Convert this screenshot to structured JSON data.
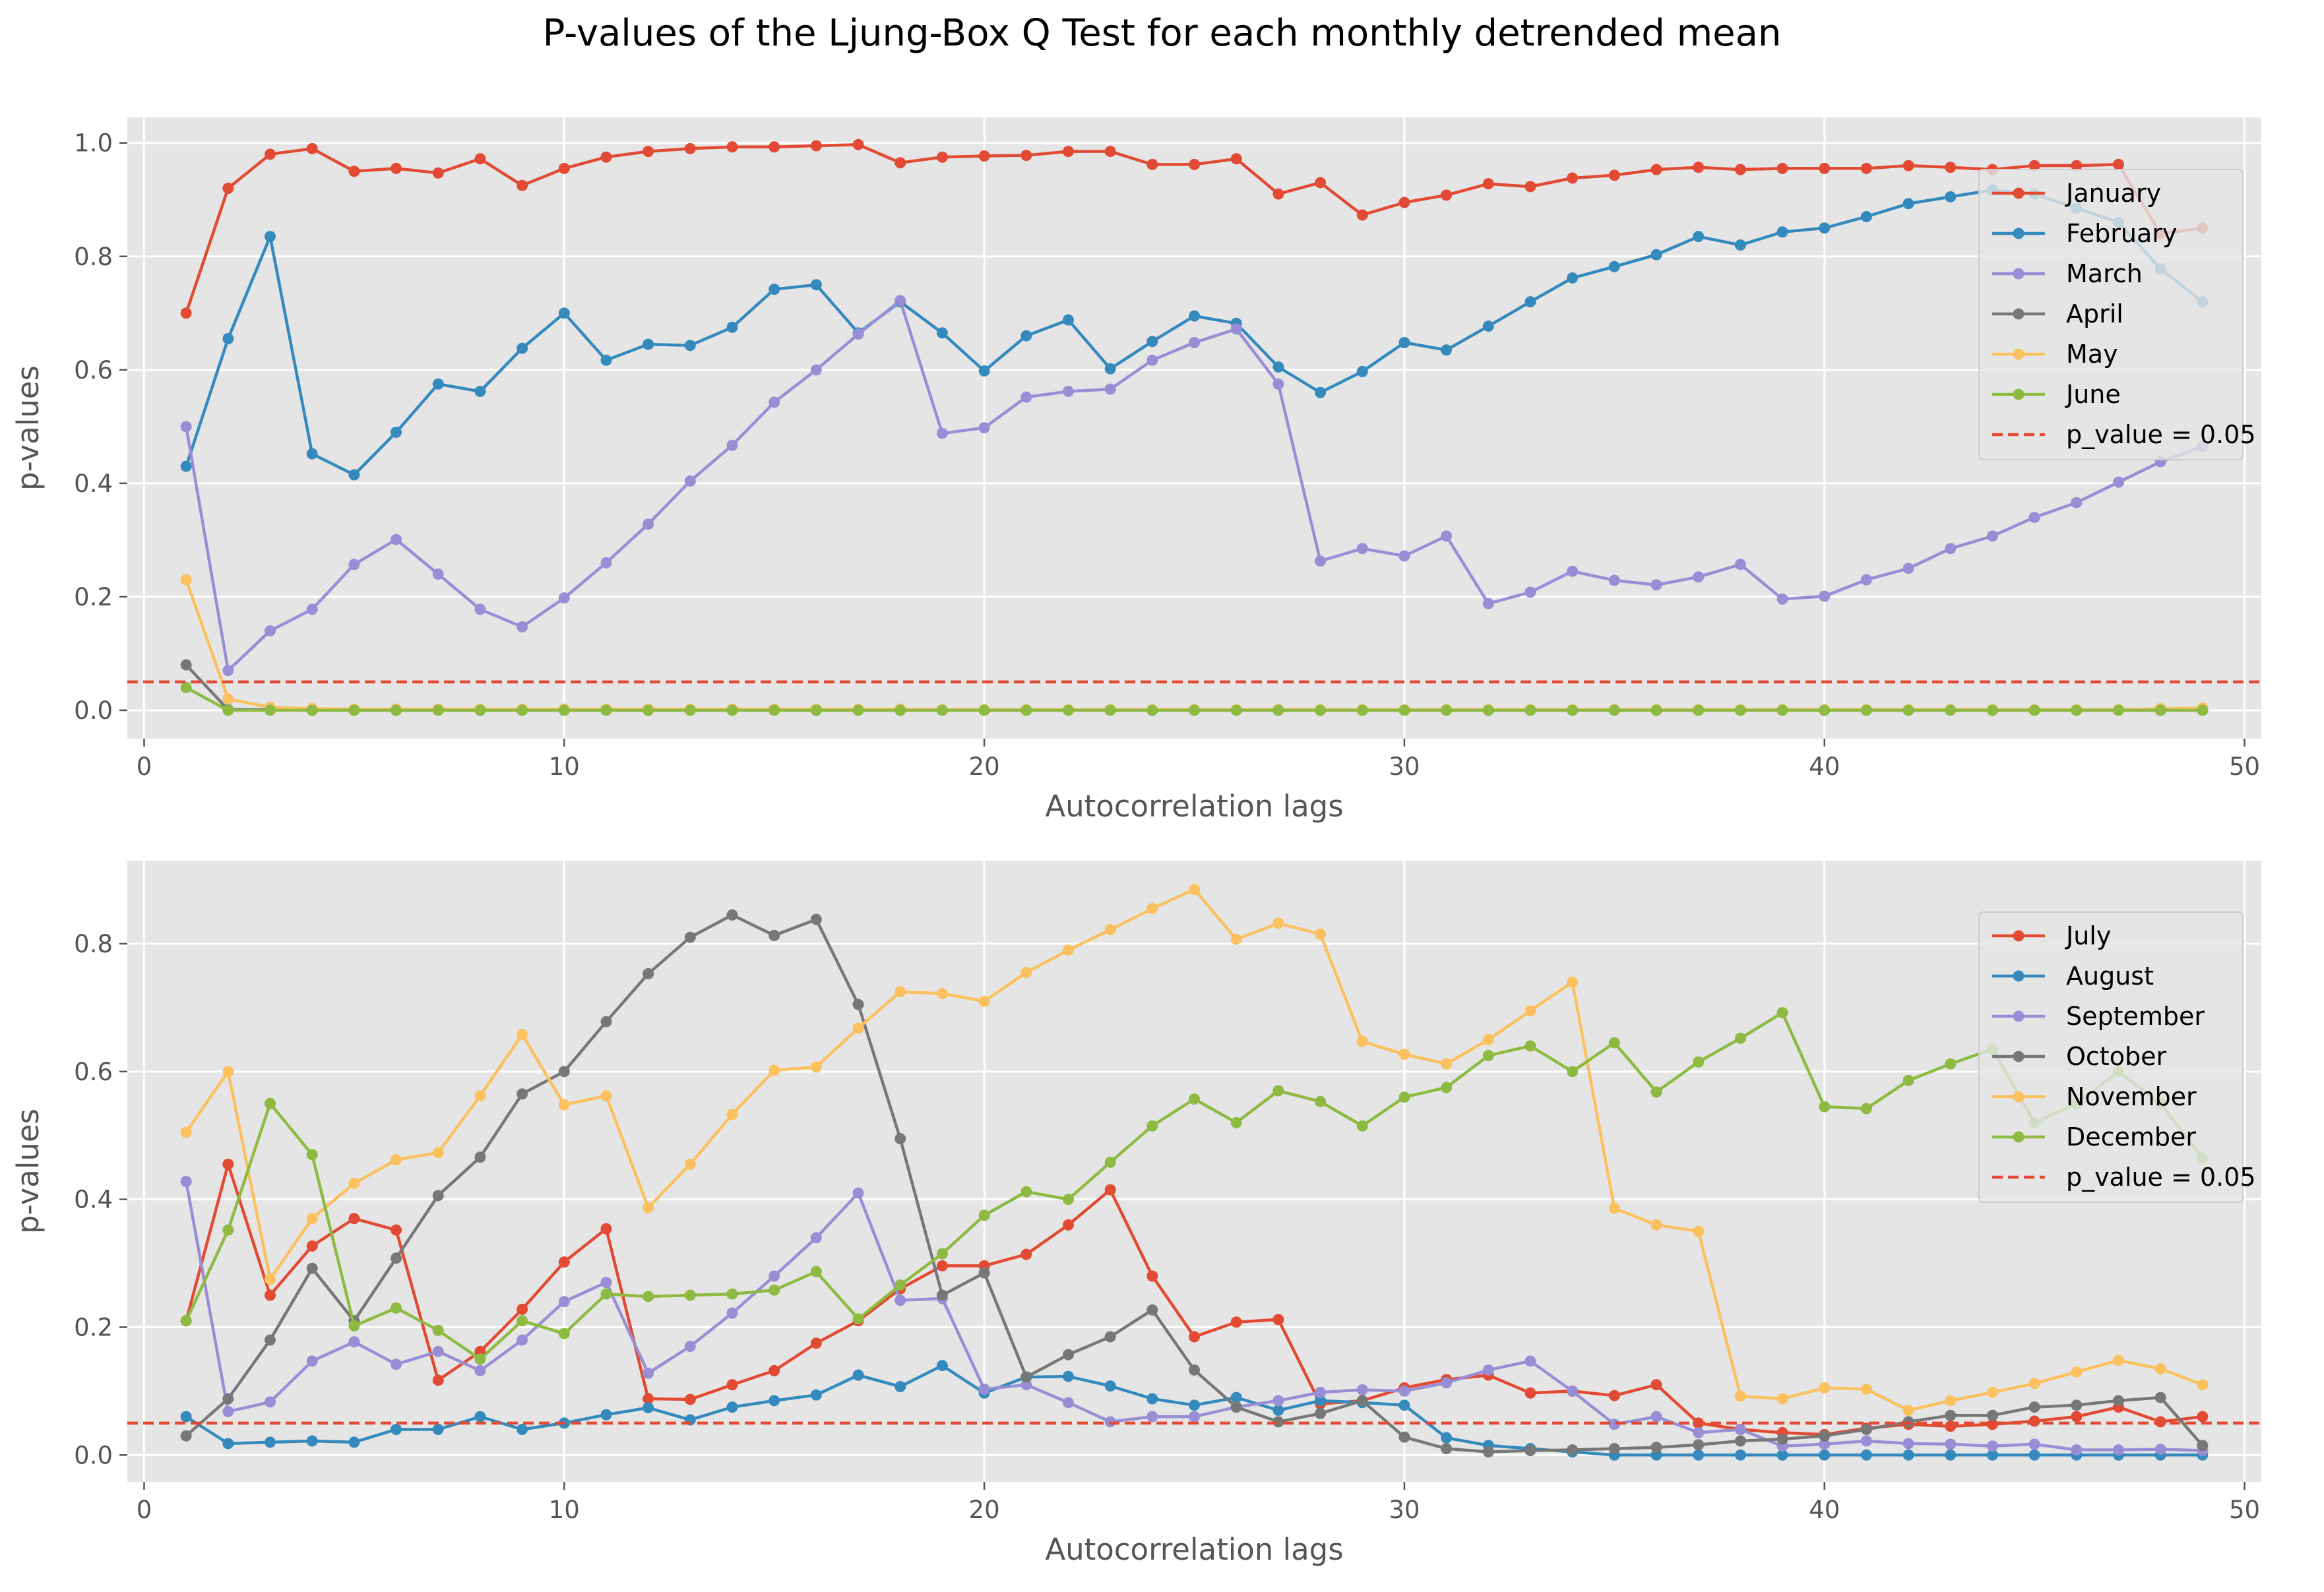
{
  "chart_data": [
    {
      "type": "line",
      "title": "P-values of the Ljung-Box Q Test for each monthly detrended mean",
      "xlabel": "Autocorrelation lags",
      "ylabel": "p-values",
      "xlim": [
        -0.4,
        50.4
      ],
      "ylim": [
        -0.05,
        1.045
      ],
      "xticks": [
        0,
        10,
        20,
        30,
        40,
        50
      ],
      "yticks": [
        0.0,
        0.2,
        0.4,
        0.6,
        0.8,
        1.0
      ],
      "ytick_labels": [
        "0.0",
        "0.2",
        "0.4",
        "0.6",
        "0.8",
        "1.0"
      ],
      "legend_position": "right",
      "grid": true,
      "reference_line": {
        "label": "p_value = 0.05",
        "y": 0.05,
        "color": "#E24A33",
        "style": "dashed"
      },
      "series": [
        {
          "name": "January",
          "color": "#E24A33",
          "values": [
            0.7,
            0.92,
            0.98,
            0.99,
            0.95,
            0.955,
            0.947,
            0.972,
            0.925,
            0.955,
            0.975,
            0.985,
            0.99,
            0.993,
            0.993,
            0.995,
            0.997,
            0.965,
            0.975,
            0.977,
            0.978,
            0.985,
            0.985,
            0.962,
            0.962,
            0.972,
            0.91,
            0.93,
            0.873,
            0.895,
            0.908,
            0.928,
            0.923,
            0.938,
            0.943,
            0.953,
            0.957,
            0.953,
            0.955,
            0.955,
            0.955,
            0.96,
            0.957,
            0.953,
            0.96,
            0.96,
            0.962,
            0.84,
            0.85
          ]
        },
        {
          "name": "February",
          "color": "#348ABD",
          "values": [
            0.43,
            0.655,
            0.835,
            0.452,
            0.415,
            0.49,
            0.575,
            0.562,
            0.638,
            0.7,
            0.617,
            0.645,
            0.643,
            0.675,
            0.742,
            0.75,
            0.665,
            0.72,
            0.665,
            0.598,
            0.66,
            0.688,
            0.602,
            0.65,
            0.695,
            0.682,
            0.605,
            0.56,
            0.597,
            0.648,
            0.635,
            0.677,
            0.72,
            0.762,
            0.782,
            0.803,
            0.835,
            0.82,
            0.843,
            0.85,
            0.87,
            0.893,
            0.905,
            0.917,
            0.91,
            0.885,
            0.86,
            0.778,
            0.72
          ]
        },
        {
          "name": "March",
          "color": "#988ED5",
          "values": [
            0.5,
            0.07,
            0.14,
            0.178,
            0.257,
            0.301,
            0.24,
            0.178,
            0.147,
            0.198,
            0.26,
            0.328,
            0.404,
            0.467,
            0.543,
            0.6,
            0.663,
            0.722,
            0.488,
            0.498,
            0.552,
            0.562,
            0.566,
            0.617,
            0.648,
            0.672,
            0.575,
            0.263,
            0.285,
            0.272,
            0.307,
            0.188,
            0.208,
            0.245,
            0.229,
            0.221,
            0.235,
            0.257,
            0.196,
            0.201,
            0.23,
            0.25,
            0.285,
            0.307,
            0.34,
            0.366,
            0.402,
            0.438,
            0.465
          ]
        },
        {
          "name": "April",
          "color": "#777777",
          "values": [
            0.08,
            0.001,
            0.001,
            0.0,
            0.0,
            0.0,
            0.0,
            0.0,
            0.0,
            0.0,
            0.0,
            0.0,
            0.0,
            0.0,
            0.0,
            0.0,
            0.0,
            0.0,
            0.0,
            0.0,
            0.0,
            0.0,
            0.0,
            0.0,
            0.0,
            0.0,
            0.0,
            0.0,
            0.0,
            0.0,
            0.0,
            0.0,
            0.0,
            0.0,
            0.0,
            0.0,
            0.0,
            0.0,
            0.0,
            0.0,
            0.0,
            0.0,
            0.0,
            0.0,
            0.0,
            0.0,
            0.0,
            0.0,
            0.0
          ]
        },
        {
          "name": "May",
          "color": "#FBC15E",
          "values": [
            0.23,
            0.02,
            0.005,
            0.003,
            0.002,
            0.002,
            0.002,
            0.002,
            0.002,
            0.002,
            0.002,
            0.002,
            0.002,
            0.002,
            0.002,
            0.002,
            0.002,
            0.002,
            0.001,
            0.001,
            0.001,
            0.001,
            0.001,
            0.001,
            0.001,
            0.001,
            0.001,
            0.001,
            0.001,
            0.001,
            0.001,
            0.001,
            0.001,
            0.001,
            0.001,
            0.001,
            0.001,
            0.001,
            0.001,
            0.001,
            0.001,
            0.001,
            0.001,
            0.001,
            0.001,
            0.001,
            0.001,
            0.003,
            0.004
          ]
        },
        {
          "name": "June",
          "color": "#8EBA42",
          "values": [
            0.04,
            0.0,
            0.0,
            0.0,
            0.0,
            0.0,
            0.0,
            0.0,
            0.0,
            0.0,
            0.0,
            0.0,
            0.0,
            0.0,
            0.0,
            0.0,
            0.0,
            0.0,
            0.0,
            0.0,
            0.0,
            0.0,
            0.0,
            0.0,
            0.0,
            0.0,
            0.0,
            0.0,
            0.0,
            0.0,
            0.0,
            0.0,
            0.0,
            0.0,
            0.0,
            0.0,
            0.0,
            0.0,
            0.0,
            0.0,
            0.0,
            0.0,
            0.0,
            0.0,
            0.0,
            0.0,
            0.0,
            0.0,
            0.0
          ]
        }
      ]
    },
    {
      "type": "line",
      "xlabel": "Autocorrelation lags",
      "ylabel": "p-values",
      "xlim": [
        -0.4,
        50.4
      ],
      "ylim": [
        -0.042,
        0.93
      ],
      "xticks": [
        0,
        10,
        20,
        30,
        40,
        50
      ],
      "yticks": [
        0.0,
        0.2,
        0.4,
        0.6,
        0.8
      ],
      "ytick_labels": [
        "0.0",
        "0.2",
        "0.4",
        "0.6",
        "0.8"
      ],
      "legend_position": "right",
      "grid": true,
      "reference_line": {
        "label": "p_value = 0.05",
        "y": 0.05,
        "color": "#E24A33",
        "style": "dashed"
      },
      "series": [
        {
          "name": "July",
          "color": "#E24A33",
          "values": [
            0.21,
            0.455,
            0.25,
            0.327,
            0.37,
            0.352,
            0.117,
            0.162,
            0.228,
            0.302,
            0.354,
            0.088,
            0.087,
            0.11,
            0.132,
            0.175,
            0.21,
            0.26,
            0.296,
            0.296,
            0.314,
            0.36,
            0.415,
            0.28,
            0.185,
            0.208,
            0.212,
            0.08,
            0.085,
            0.105,
            0.118,
            0.125,
            0.097,
            0.1,
            0.093,
            0.11,
            0.05,
            0.04,
            0.035,
            0.032,
            0.042,
            0.048,
            0.045,
            0.048,
            0.053,
            0.06,
            0.075,
            0.052,
            0.06
          ]
        },
        {
          "name": "August",
          "color": "#348ABD",
          "values": [
            0.06,
            0.018,
            0.02,
            0.022,
            0.02,
            0.04,
            0.04,
            0.06,
            0.04,
            0.05,
            0.063,
            0.074,
            0.055,
            0.075,
            0.085,
            0.094,
            0.125,
            0.107,
            0.14,
            0.097,
            0.122,
            0.123,
            0.108,
            0.088,
            0.078,
            0.09,
            0.07,
            0.085,
            0.082,
            0.078,
            0.027,
            0.015,
            0.01,
            0.005,
            0.0,
            0.0,
            0.0,
            0.0,
            0.0,
            0.0,
            0.0,
            0.0,
            0.0,
            0.0,
            0.0,
            0.0,
            0.0,
            0.0,
            0.0
          ]
        },
        {
          "name": "September",
          "color": "#988ED5",
          "values": [
            0.428,
            0.068,
            0.083,
            0.147,
            0.177,
            0.142,
            0.162,
            0.132,
            0.18,
            0.24,
            0.27,
            0.128,
            0.17,
            0.222,
            0.28,
            0.34,
            0.41,
            0.242,
            0.245,
            0.103,
            0.11,
            0.082,
            0.052,
            0.06,
            0.06,
            0.075,
            0.085,
            0.098,
            0.102,
            0.1,
            0.113,
            0.133,
            0.147,
            0.1,
            0.048,
            0.06,
            0.035,
            0.04,
            0.014,
            0.017,
            0.022,
            0.018,
            0.017,
            0.014,
            0.017,
            0.008,
            0.008,
            0.009,
            0.007
          ]
        },
        {
          "name": "October",
          "color": "#777777",
          "values": [
            0.03,
            0.088,
            0.18,
            0.292,
            0.21,
            0.308,
            0.406,
            0.466,
            0.565,
            0.6,
            0.678,
            0.753,
            0.81,
            0.845,
            0.813,
            0.838,
            0.705,
            0.495,
            0.25,
            0.285,
            0.122,
            0.157,
            0.185,
            0.227,
            0.133,
            0.075,
            0.052,
            0.065,
            0.085,
            0.028,
            0.01,
            0.005,
            0.007,
            0.008,
            0.01,
            0.012,
            0.016,
            0.022,
            0.025,
            0.03,
            0.04,
            0.052,
            0.062,
            0.062,
            0.075,
            0.078,
            0.085,
            0.09,
            0.015
          ]
        },
        {
          "name": "November",
          "color": "#FBC15E",
          "values": [
            0.505,
            0.6,
            0.275,
            0.37,
            0.425,
            0.462,
            0.473,
            0.562,
            0.658,
            0.548,
            0.562,
            0.387,
            0.455,
            0.533,
            0.602,
            0.607,
            0.668,
            0.725,
            0.722,
            0.71,
            0.755,
            0.79,
            0.822,
            0.855,
            0.885,
            0.807,
            0.832,
            0.815,
            0.647,
            0.627,
            0.612,
            0.65,
            0.695,
            0.74,
            0.386,
            0.36,
            0.35,
            0.092,
            0.088,
            0.105,
            0.103,
            0.07,
            0.085,
            0.098,
            0.112,
            0.13,
            0.148,
            0.135,
            0.11
          ]
        },
        {
          "name": "December",
          "color": "#8EBA42",
          "values": [
            0.21,
            0.352,
            0.55,
            0.47,
            0.202,
            0.23,
            0.195,
            0.15,
            0.21,
            0.19,
            0.252,
            0.248,
            0.25,
            0.252,
            0.258,
            0.287,
            0.213,
            0.266,
            0.315,
            0.375,
            0.412,
            0.4,
            0.458,
            0.515,
            0.557,
            0.52,
            0.57,
            0.553,
            0.515,
            0.56,
            0.575,
            0.625,
            0.64,
            0.6,
            0.645,
            0.568,
            0.615,
            0.652,
            0.692,
            0.545,
            0.542,
            0.586,
            0.612,
            0.635,
            0.52,
            0.55,
            0.6,
            0.55,
            0.465
          ]
        }
      ]
    }
  ]
}
